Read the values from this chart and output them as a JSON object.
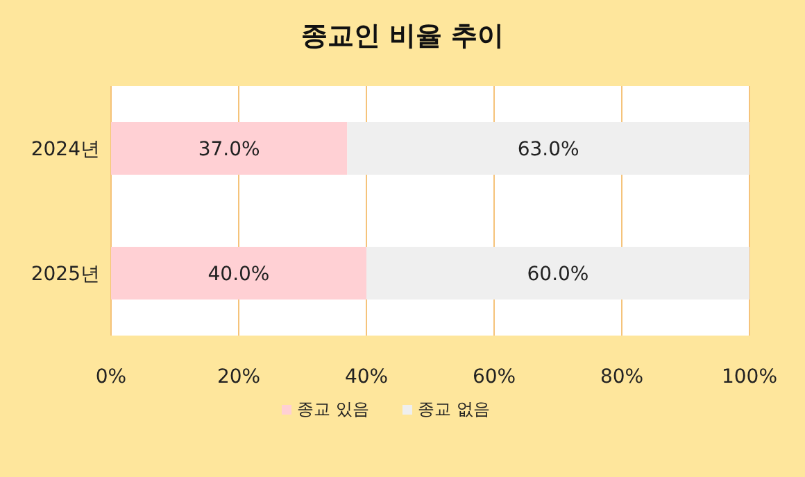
{
  "chart_data": {
    "type": "bar",
    "title": "종교인 비율 추이",
    "orientation": "horizontal",
    "stacked": true,
    "categories": [
      "2024년",
      "2025년"
    ],
    "series": [
      {
        "name": "종교 있음",
        "color": "#ffd0d4",
        "values": [
          37.0,
          40.0
        ],
        "value_labels": [
          "37.0%",
          "40.0%"
        ]
      },
      {
        "name": "종교 없음",
        "color": "#efefef",
        "values": [
          63.0,
          60.0
        ],
        "value_labels": [
          "63.0%",
          "60.0%"
        ]
      }
    ],
    "xlim": [
      0,
      100
    ],
    "xticks": [
      {
        "value": 0,
        "label": "0%"
      },
      {
        "value": 20,
        "label": "20%"
      },
      {
        "value": 40,
        "label": "40%"
      },
      {
        "value": 60,
        "label": "60%"
      },
      {
        "value": 80,
        "label": "80%"
      },
      {
        "value": 100,
        "label": "100%"
      }
    ],
    "grid": "x",
    "legend": "bottom"
  }
}
